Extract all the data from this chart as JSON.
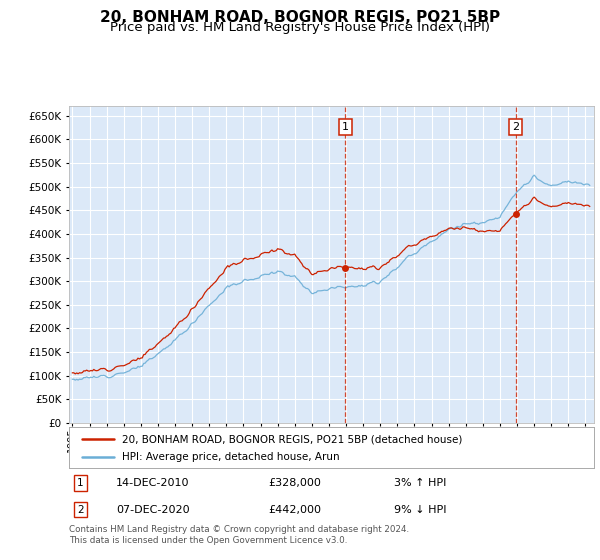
{
  "title": "20, BONHAM ROAD, BOGNOR REGIS, PO21 5BP",
  "subtitle": "Price paid vs. HM Land Registry's House Price Index (HPI)",
  "background_color": "#ffffff",
  "plot_bg_color": "#dce9f8",
  "grid_color": "#ffffff",
  "red_line_color": "#cc2200",
  "blue_line_color": "#6baed6",
  "ylim": [
    0,
    670000
  ],
  "yticks": [
    0,
    50000,
    100000,
    150000,
    200000,
    250000,
    300000,
    350000,
    400000,
    450000,
    500000,
    550000,
    600000,
    650000
  ],
  "xlim_start": 1994.8,
  "xlim_end": 2025.5,
  "marker1_year": 2011.0,
  "marker1_y": 328000,
  "marker2_year": 2020.92,
  "marker2_y": 442000,
  "marker1_date": "14-DEC-2010",
  "marker1_price": "£328,000",
  "marker1_pct": "3% ↑ HPI",
  "marker2_date": "07-DEC-2020",
  "marker2_price": "£442,000",
  "marker2_pct": "9% ↓ HPI",
  "legend_line1": "20, BONHAM ROAD, BOGNOR REGIS, PO21 5BP (detached house)",
  "legend_line2": "HPI: Average price, detached house, Arun",
  "footer": "Contains HM Land Registry data © Crown copyright and database right 2024.\nThis data is licensed under the Open Government Licence v3.0.",
  "title_fontsize": 11,
  "subtitle_fontsize": 9.5,
  "hpi_waypoints_x": [
    1995,
    1996,
    1997,
    1998,
    1999,
    2000,
    2001,
    2002,
    2003,
    2004,
    2005,
    2006,
    2007,
    2008,
    2009,
    2010,
    2011,
    2012,
    2013,
    2014,
    2015,
    2016,
    2017,
    2018,
    2019,
    2020,
    2021,
    2022,
    2023,
    2024,
    2025
  ],
  "hpi_waypoints_y": [
    92000,
    95000,
    100000,
    107000,
    120000,
    145000,
    175000,
    210000,
    250000,
    285000,
    300000,
    310000,
    320000,
    310000,
    275000,
    285000,
    290000,
    290000,
    300000,
    330000,
    360000,
    385000,
    410000,
    420000,
    425000,
    435000,
    490000,
    520000,
    500000,
    510000,
    505000
  ],
  "price_scale_before": 1.03,
  "price_scale_after1": 0.91,
  "sale1_idx_year": 2010.96,
  "sale2_idx_year": 2020.92
}
